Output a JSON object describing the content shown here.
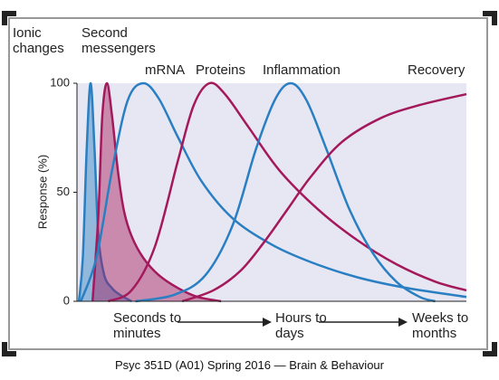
{
  "chart_data": {
    "type": "line",
    "ylabel": "Response (%)",
    "ylim": [
      0,
      100
    ],
    "yticks": [
      0,
      50,
      100
    ],
    "xlim": [
      0,
      100
    ],
    "x_axis_labels": [
      "Seconds to minutes",
      "Hours to days",
      "Weeks to months"
    ],
    "series": [
      {
        "name": "Ionic changes",
        "color": "#2a7fc2",
        "filled": true,
        "x": [
          0.5,
          1.5,
          2.5,
          3.5,
          4.5,
          5.5,
          7,
          9,
          11,
          14
        ],
        "values": [
          0,
          20,
          70,
          100,
          70,
          30,
          12,
          6,
          3,
          0
        ]
      },
      {
        "name": "Second messengers",
        "color": "#a3195b",
        "filled": true,
        "x": [
          4,
          5.5,
          6.5,
          7.7,
          9,
          10.5,
          12,
          14,
          17,
          21,
          26,
          31,
          37
        ],
        "values": [
          0,
          40,
          85,
          100,
          85,
          60,
          42,
          30,
          20,
          12,
          6,
          2,
          0
        ]
      },
      {
        "name": "mRNA",
        "color": "#2a7fc2",
        "filled": false,
        "x": [
          1,
          5,
          9,
          13,
          17,
          21,
          26,
          32,
          40,
          50,
          60,
          72,
          85,
          100
        ],
        "values": [
          0,
          20,
          60,
          92,
          100,
          93,
          75,
          55,
          38,
          26,
          18,
          11,
          6,
          2
        ]
      },
      {
        "name": "Proteins",
        "color": "#a3195b",
        "filled": false,
        "x": [
          8,
          14,
          20,
          26,
          30,
          34,
          38,
          44,
          52,
          62,
          72,
          82,
          92,
          100
        ],
        "values": [
          0,
          5,
          25,
          65,
          90,
          100,
          95,
          80,
          60,
          42,
          28,
          17,
          9,
          5
        ]
      },
      {
        "name": "Inflammation",
        "color": "#2a7fc2",
        "filled": false,
        "x": [
          15,
          25,
          33,
          40,
          46,
          51,
          55,
          59,
          64,
          70,
          76,
          82,
          88,
          92
        ],
        "values": [
          0,
          3,
          12,
          35,
          70,
          93,
          100,
          92,
          70,
          42,
          22,
          9,
          2,
          0
        ]
      },
      {
        "name": "Recovery",
        "color": "#a3195b",
        "filled": false,
        "x": [
          27,
          35,
          42,
          48,
          54,
          60,
          68,
          78,
          88,
          100
        ],
        "values": [
          0,
          5,
          14,
          27,
          42,
          57,
          73,
          84,
          90,
          95
        ]
      }
    ]
  },
  "caption": "Psyc 351D (A01) Spring 2016 — Brain & Behaviour"
}
